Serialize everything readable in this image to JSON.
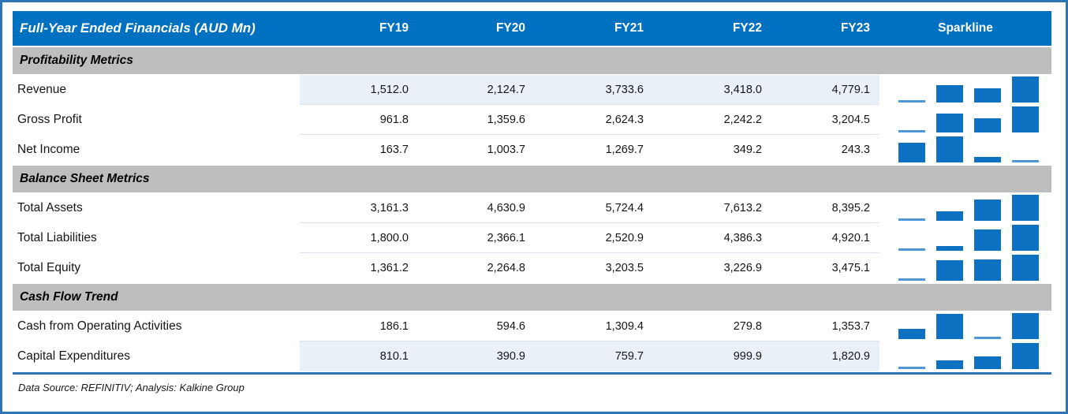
{
  "header": {
    "title": "Full-Year Ended Financials (AUD Mn)",
    "columns": [
      "FY19",
      "FY20",
      "FY21",
      "FY22",
      "FY23"
    ],
    "sparkline_label": "Sparkline"
  },
  "sections": [
    {
      "label": "Profitability Metrics",
      "series_indexes": [
        0,
        1,
        2
      ]
    },
    {
      "label": "Balance Sheet Metrics",
      "series_indexes": [
        3,
        4,
        5
      ]
    },
    {
      "label": "Cash Flow Trend",
      "series_indexes": [
        6,
        7
      ]
    }
  ],
  "footer": {
    "text": "Data Source: REFINITIV; Analysis: Kalkine Group"
  },
  "colors": {
    "header_blue": "#0070C0",
    "frame_blue": "#2E75B6",
    "section_gray": "#BEBEBE",
    "row_band_blue": "#E9F0F8",
    "separator": "#D9E2F0",
    "sparkline_bar": "#0E70C1",
    "sparkline_min_line": "#4D96D8"
  },
  "chart_data": {
    "type": "table",
    "title": "Full-Year Ended Financials (AUD Mn)",
    "categories": [
      "FY19",
      "FY20",
      "FY21",
      "FY22",
      "FY23"
    ],
    "series": [
      {
        "name": "Revenue",
        "section": "Profitability Metrics",
        "highlight": true,
        "values": [
          1512.0,
          2124.7,
          3733.6,
          3418.0,
          4779.1
        ]
      },
      {
        "name": "Gross Profit",
        "section": "Profitability Metrics",
        "highlight": false,
        "values": [
          961.8,
          1359.6,
          2624.3,
          2242.2,
          3204.5
        ]
      },
      {
        "name": "Net Income",
        "section": "Profitability Metrics",
        "highlight": false,
        "values": [
          163.7,
          1003.7,
          1269.7,
          349.2,
          243.3
        ]
      },
      {
        "name": "Total Assets",
        "section": "Balance Sheet Metrics",
        "highlight": false,
        "values": [
          3161.3,
          4630.9,
          5724.4,
          7613.2,
          8395.2
        ]
      },
      {
        "name": "Total Liabilities",
        "section": "Balance Sheet Metrics",
        "highlight": false,
        "values": [
          1800.0,
          2366.1,
          2520.9,
          4386.3,
          4920.1
        ]
      },
      {
        "name": "Total Equity",
        "section": "Balance Sheet Metrics",
        "highlight": false,
        "values": [
          1361.2,
          2264.8,
          3203.5,
          3226.9,
          3475.1
        ]
      },
      {
        "name": "Cash from Operating Activities",
        "section": "Cash Flow Trend",
        "highlight": false,
        "values": [
          186.1,
          594.6,
          1309.4,
          279.8,
          1353.7
        ]
      },
      {
        "name": "Capital Expenditures",
        "section": "Cash Flow Trend",
        "highlight": true,
        "values": [
          810.1,
          390.9,
          759.7,
          999.9,
          1820.9
        ]
      }
    ],
    "sparkline": {
      "type": "bar",
      "plotted_categories": [
        "FY20",
        "FY21",
        "FY22",
        "FY23"
      ],
      "scaling": "min-max within FY20-FY23; minimum value drawn as flat line"
    }
  }
}
